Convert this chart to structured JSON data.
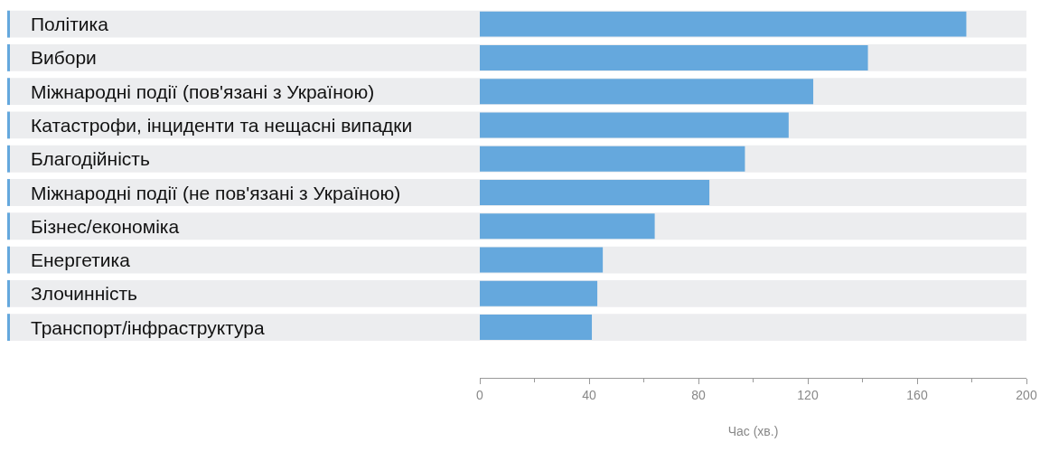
{
  "chart_data": {
    "type": "bar",
    "orientation": "horizontal",
    "xlabel": "Час (хв.)",
    "categories": [
      "Політика",
      "Вибори",
      "Міжнародні події (пов'язані з Україною)",
      "Катастрофи, інциденти та нещасні випадки",
      "Благодійність",
      "Міжнародні події (не пов'язані з Україною)",
      "Бізнес/економіка",
      "Енергетика",
      "Злочинність",
      "Транспорт/інфраструктура"
    ],
    "values": [
      178,
      142,
      122,
      113,
      97,
      84,
      64,
      45,
      43,
      41
    ],
    "color": "#65a8dd",
    "xlim": [
      0,
      200
    ],
    "xticks": [
      0,
      40,
      80,
      120,
      160,
      200
    ]
  }
}
